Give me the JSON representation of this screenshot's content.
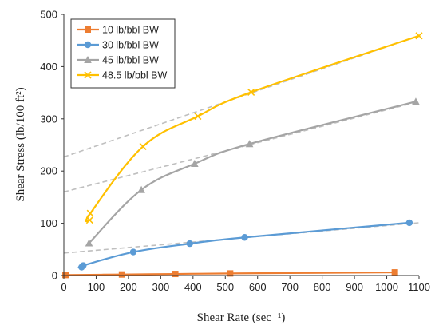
{
  "chart_data": {
    "type": "line",
    "xlabel": "Shear Rate (sec⁻¹)",
    "ylabel": "Shear Stress (lb/100 ft²)",
    "xlim": [
      0,
      1100
    ],
    "ylim": [
      0,
      500
    ],
    "x_ticks": [
      "0",
      "100",
      "200",
      "300",
      "400",
      "500",
      "600",
      "700",
      "800",
      "900",
      "1000",
      "1100"
    ],
    "y_ticks": [
      "0",
      "100",
      "200",
      "300",
      "400",
      "500"
    ],
    "grid": false,
    "legend_position": "top-left",
    "series": [
      {
        "name": "10 lb/bbl BW",
        "color": "#ED7D31",
        "marker": "square",
        "x": [
          5,
          180,
          345,
          515,
          1025
        ],
        "y": [
          1,
          2,
          3,
          4,
          6
        ]
      },
      {
        "name": "30 lb/bbl BW",
        "color": "#5B9BD5",
        "marker": "circle",
        "x": [
          55,
          60,
          215,
          390,
          560,
          1070
        ],
        "y": [
          16,
          19,
          45,
          61,
          73,
          101
        ]
      },
      {
        "name": "45 lb/bbl BW",
        "color": "#A5A5A5",
        "marker": "triangle",
        "x": [
          78,
          240,
          405,
          575,
          1090
        ],
        "y": [
          62,
          164,
          214,
          252,
          333
        ]
      },
      {
        "name": "48.5 lb/bbl BW",
        "color": "#FFC000",
        "marker": "x",
        "x": [
          80,
          82,
          245,
          415,
          580,
          1100
        ],
        "y": [
          106,
          119,
          247,
          305,
          351,
          459
        ]
      }
    ],
    "trend_lines": [
      {
        "color": "#BFBFBF",
        "x": [
          0,
          1100
        ],
        "y": [
          43,
          101
        ]
      },
      {
        "color": "#BFBFBF",
        "x": [
          0,
          1100
        ],
        "y": [
          160,
          333
        ]
      },
      {
        "color": "#BFBFBF",
        "x": [
          0,
          1100
        ],
        "y": [
          227,
          459
        ]
      }
    ]
  }
}
